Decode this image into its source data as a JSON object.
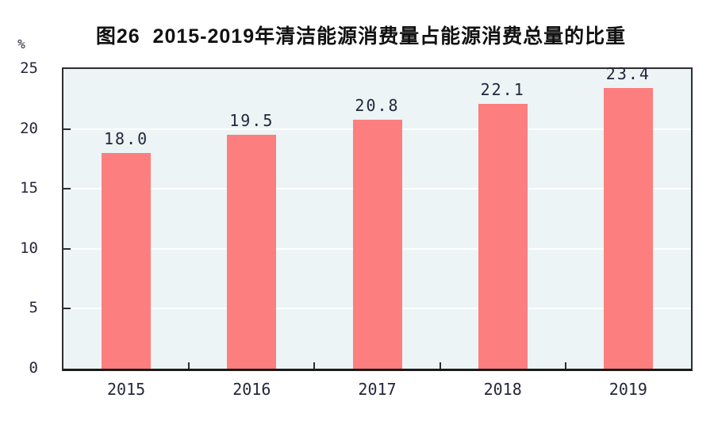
{
  "page": {
    "background": "#ffffff"
  },
  "chart_data": {
    "type": "bar",
    "title": "图26  2015-2019年清洁能源消费量占能源消费总量的比重",
    "unit_label": "%",
    "categories": [
      "2015",
      "2016",
      "2017",
      "2018",
      "2019"
    ],
    "values": [
      18.0,
      19.5,
      20.8,
      22.1,
      23.4
    ],
    "value_labels": [
      "18.0",
      "19.5",
      "20.8",
      "22.1",
      "23.4"
    ],
    "xlabel": "",
    "ylabel": "%",
    "ylim": [
      0,
      25
    ],
    "yticks": [
      0,
      5,
      10,
      15,
      20,
      25
    ],
    "grid": true,
    "legend": "none",
    "bar_color": "#fd7e7e",
    "plot_bg": "#ecf4f5",
    "gridline_color": "#ffffff",
    "axis_color": "#2e2e2e",
    "label_color": "#26263a",
    "title_color": "#111111"
  }
}
